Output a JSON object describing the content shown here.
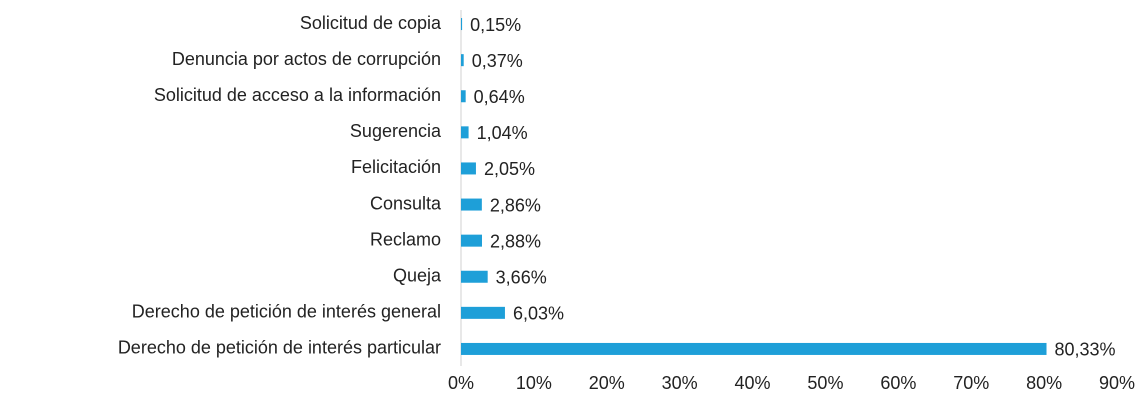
{
  "chart_data": {
    "type": "bar",
    "orientation": "horizontal",
    "categories": [
      "Solicitud de copia",
      "Denuncia por actos de corrupción",
      "Solicitud de acceso a la información",
      "Sugerencia",
      "Felicitación",
      "Consulta",
      "Reclamo",
      "Queja",
      "Derecho de petición de interés general",
      "Derecho de petición de interés particular"
    ],
    "values": [
      0.15,
      0.37,
      0.64,
      1.04,
      2.05,
      2.86,
      2.88,
      3.66,
      6.03,
      80.33
    ],
    "value_labels": [
      "0,15%",
      "0,37%",
      "0,64%",
      "1,04%",
      "2,05%",
      "2,86%",
      "2,88%",
      "3,66%",
      "6,03%",
      "80,33%"
    ],
    "color": "#1e9fd8",
    "xlim": [
      0,
      90
    ],
    "xticks": [
      {
        "value": 0,
        "label": "0%"
      },
      {
        "value": 10,
        "label": "10%"
      },
      {
        "value": 20,
        "label": "20%"
      },
      {
        "value": 30,
        "label": "30%"
      },
      {
        "value": 40,
        "label": "40%"
      },
      {
        "value": 50,
        "label": "50%"
      },
      {
        "value": 60,
        "label": "60%"
      },
      {
        "value": 70,
        "label": "70%"
      },
      {
        "value": 80,
        "label": "80%"
      },
      {
        "value": 90,
        "label": "90%"
      }
    ],
    "grid": false
  }
}
